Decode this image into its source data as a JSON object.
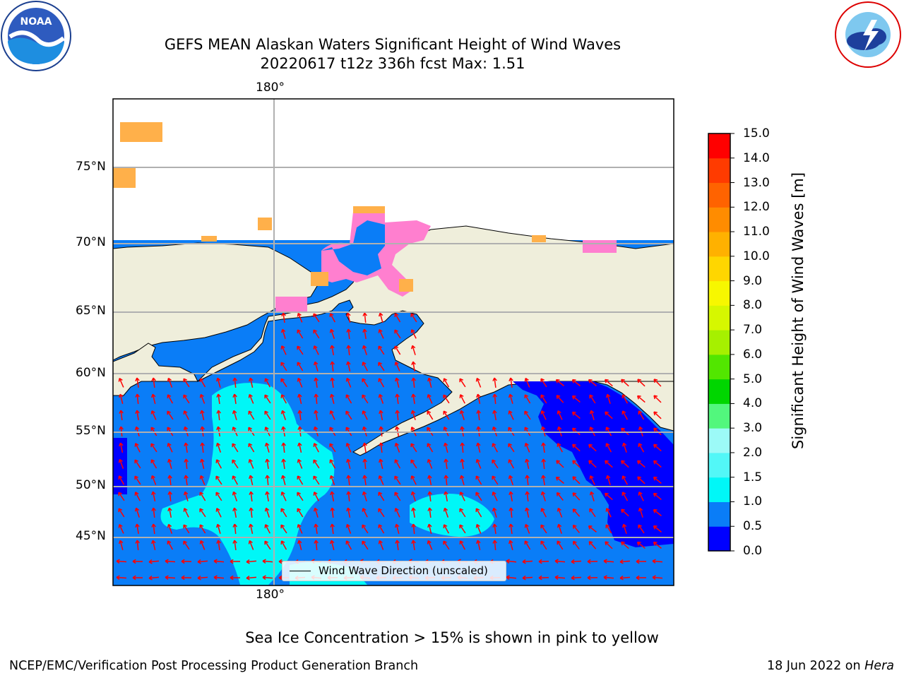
{
  "title": {
    "line1": "GEFS MEAN Alaskan Waters Significant Height of Wind Waves",
    "line2": "20220617 t12z 336h fcst   Max: 1.51"
  },
  "logos": {
    "left": {
      "icon": "noaa-logo",
      "text": "NOAA"
    },
    "right": {
      "icon": "nws-logo",
      "text": "NATIONAL WEATHER SERVICE"
    }
  },
  "axes": {
    "lon_top": "180°",
    "lon_bottom": "180°",
    "lat_labels": [
      "75°N",
      "70°N",
      "65°N",
      "60°N",
      "55°N",
      "50°N",
      "45°N"
    ]
  },
  "legend": {
    "label": "Wind Wave Direction (unscaled)"
  },
  "colorbar": {
    "label": "Significant Height of Wind Waves [m]",
    "ticks": [
      "15.0",
      "14.0",
      "13.0",
      "12.0",
      "11.0",
      "10.0",
      "9.0",
      "8.0",
      "7.0",
      "6.0",
      "5.0",
      "4.0",
      "3.0",
      "2.0",
      "1.5",
      "1.0",
      "0.5",
      "0.0"
    ],
    "colors": [
      "#0000ff",
      "#0a7df7",
      "#00f7f7",
      "#52f7f7",
      "#9cfaf7",
      "#52f77d",
      "#00d600",
      "#52e600",
      "#a6f000",
      "#d6f700",
      "#f7f700",
      "#ffd600",
      "#ffb100",
      "#ff8c00",
      "#ff6300",
      "#ff3b00",
      "#ff0000"
    ]
  },
  "map_colors": {
    "land": "#efeedb",
    "wave_05_10": "#0a7df7",
    "wave_00_05": "#0000ff",
    "wave_10_15": "#00f7f7",
    "ice_pink": "#ff7fcf",
    "ice_orange": "#ffb04a",
    "arrow": "#ff0000"
  },
  "footer": {
    "note": "Sea Ice Concentration > 15% is shown in pink to yellow",
    "left": "NCEP/EMC/Verification Post Processing Product Generation Branch",
    "right_date": "18 Jun 2022 on ",
    "right_host": "Hera"
  }
}
